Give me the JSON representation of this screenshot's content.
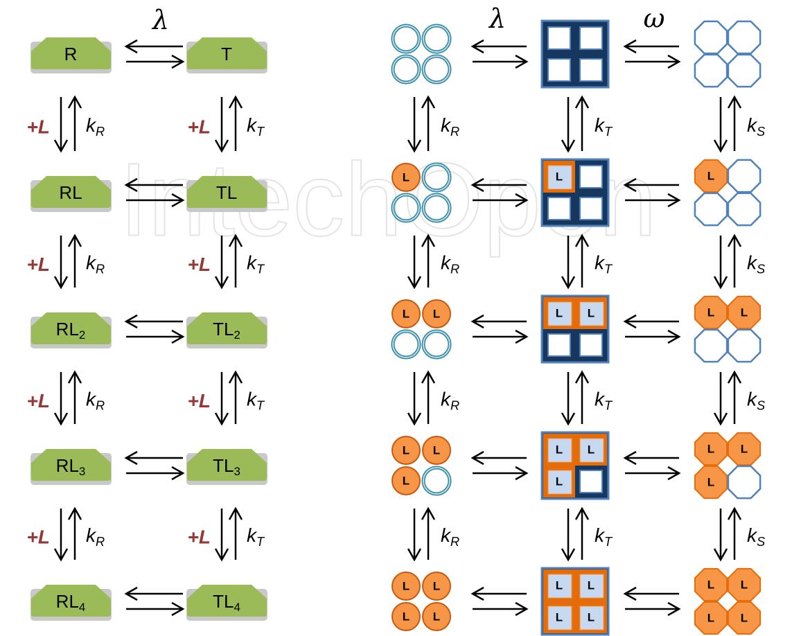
{
  "watermark": "IntechOpen",
  "left_scheme": {
    "lambda": "λ",
    "states": [
      {
        "r": {
          "base": "R"
        },
        "t": {
          "base": "T"
        }
      },
      {
        "r": {
          "base": "RL"
        },
        "t": {
          "base": "TL"
        }
      },
      {
        "r": {
          "base": "RL",
          "sub": "2"
        },
        "t": {
          "base": "TL",
          "sub": "2"
        }
      },
      {
        "r": {
          "base": "RL",
          "sub": "3"
        },
        "t": {
          "base": "TL",
          "sub": "3"
        }
      },
      {
        "r": {
          "base": "RL",
          "sub": "4"
        },
        "t": {
          "base": "TL",
          "sub": "4"
        }
      }
    ],
    "steps": [
      {
        "ligand_r": "+L",
        "k_r": {
          "base": "k",
          "sub": "R"
        },
        "ligand_t": "+L",
        "k_t": {
          "base": "k",
          "sub": "T"
        }
      },
      {
        "ligand_r": "+L",
        "k_r": {
          "base": "k",
          "sub": "R"
        },
        "ligand_t": "+L",
        "k_t": {
          "base": "k",
          "sub": "T"
        }
      },
      {
        "ligand_r": "+L",
        "k_r": {
          "base": "k",
          "sub": "R"
        },
        "ligand_t": "+L",
        "k_t": {
          "base": "k",
          "sub": "T"
        }
      },
      {
        "ligand_r": "+L",
        "k_r": {
          "base": "k",
          "sub": "R"
        },
        "ligand_t": "+L",
        "k_t": {
          "base": "k",
          "sub": "T"
        }
      }
    ]
  },
  "right_scheme": {
    "lambda": "λ",
    "omega": "ω",
    "ligand": "L",
    "steps": [
      {
        "k_r": {
          "base": "k",
          "sub": "R"
        },
        "k_t": {
          "base": "k",
          "sub": "T"
        },
        "k_s": {
          "base": "k",
          "sub": "S"
        }
      },
      {
        "k_r": {
          "base": "k",
          "sub": "R"
        },
        "k_t": {
          "base": "k",
          "sub": "T"
        },
        "k_s": {
          "base": "k",
          "sub": "S"
        }
      },
      {
        "k_r": {
          "base": "k",
          "sub": "R"
        },
        "k_t": {
          "base": "k",
          "sub": "T"
        },
        "k_s": {
          "base": "k",
          "sub": "S"
        }
      },
      {
        "k_r": {
          "base": "k",
          "sub": "R"
        },
        "k_t": {
          "base": "k",
          "sub": "T"
        },
        "k_s": {
          "base": "k",
          "sub": "S"
        }
      }
    ]
  }
}
